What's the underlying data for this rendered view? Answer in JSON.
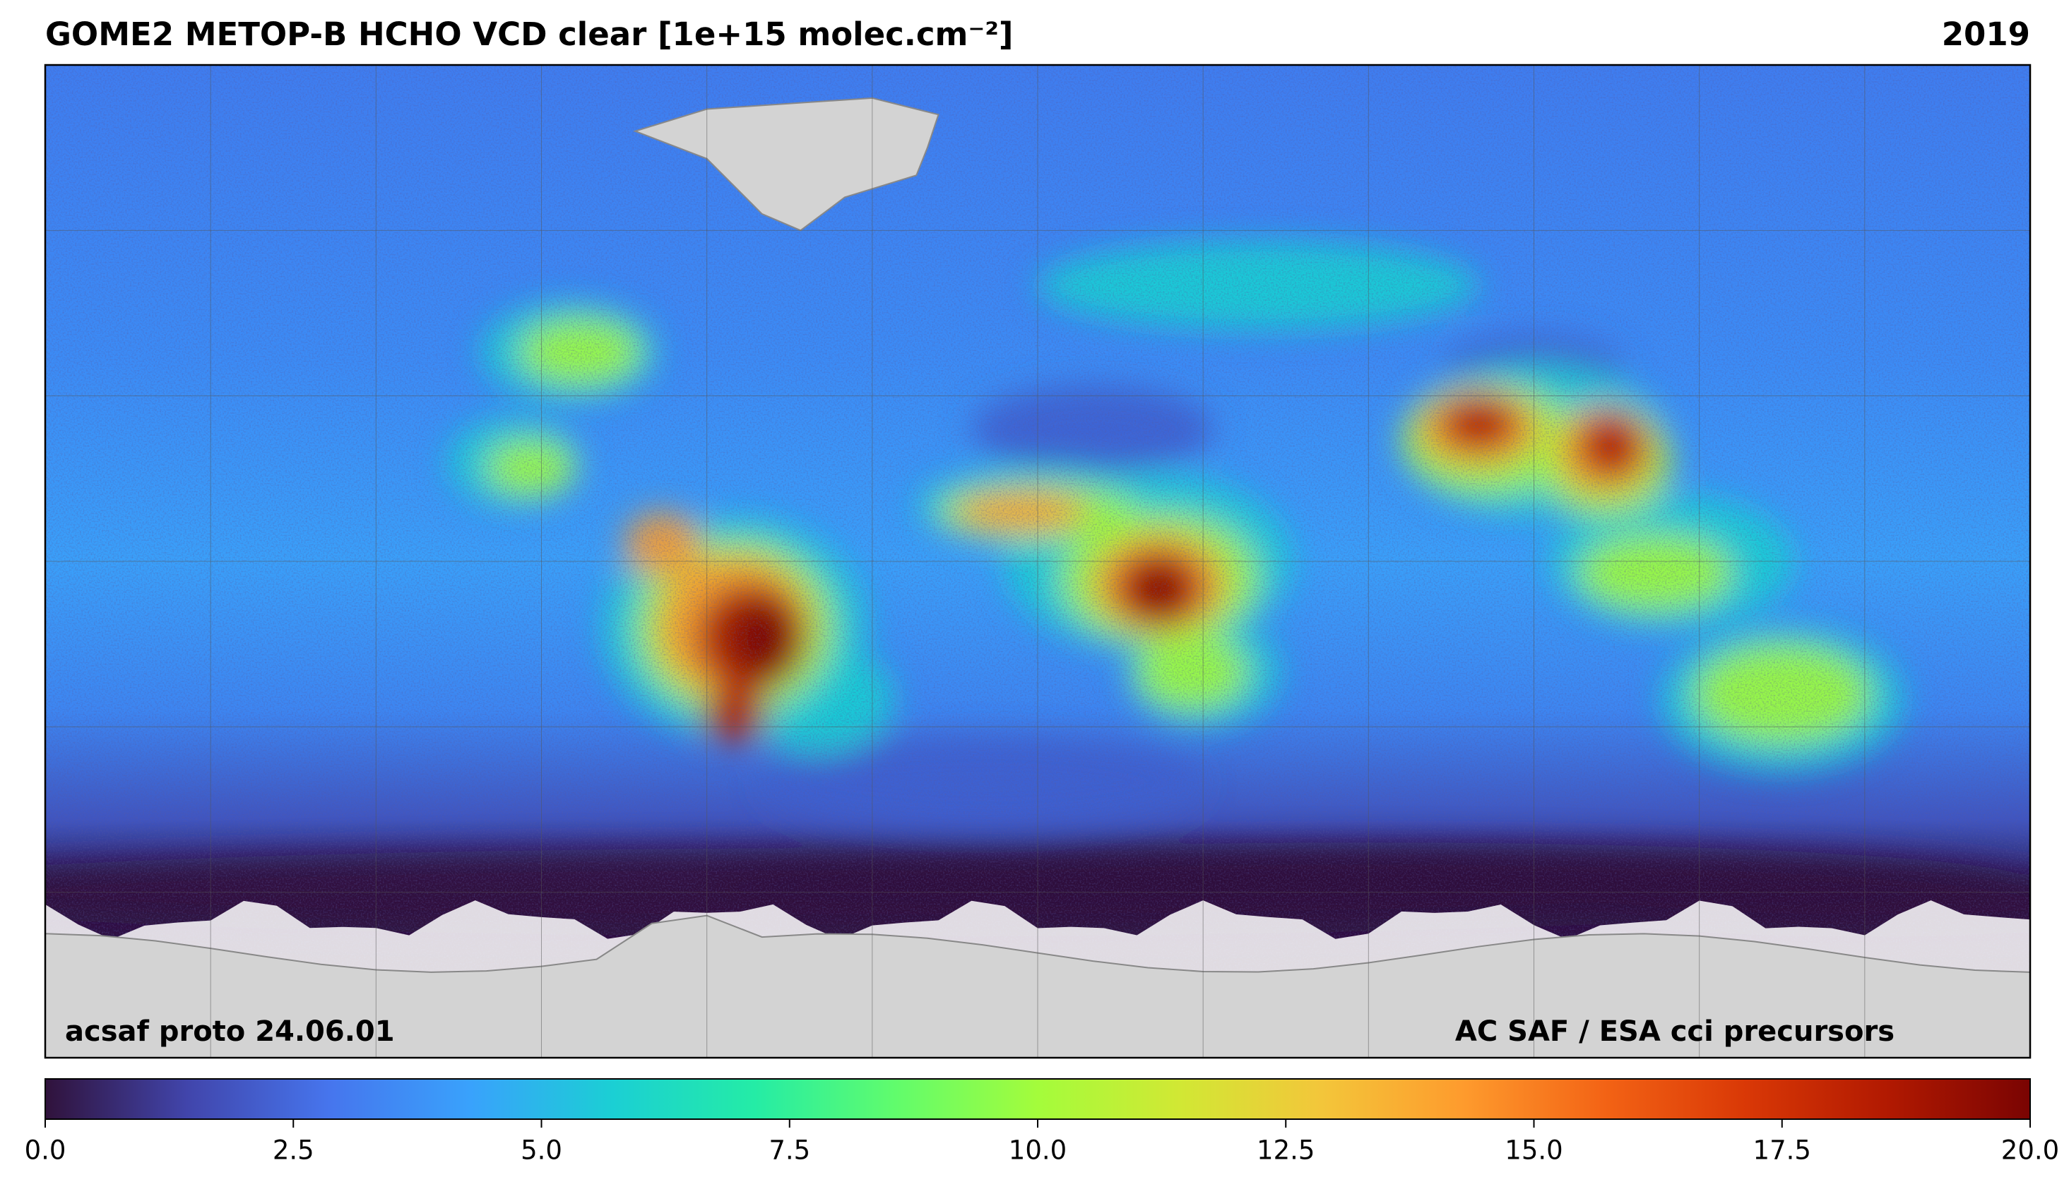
{
  "title": "GOME2 METOP-B HCHO VCD clear [1e+15 molec.cm⁻²]",
  "year": "2019",
  "footer_left": "acsaf proto 24.06.01",
  "footer_right": "AC SAF / ESA cci precursors",
  "colorbar": {
    "clim": [
      0,
      20
    ],
    "ticks": [
      {
        "value": 0,
        "label": "0.0"
      },
      2.5,
      {
        "value": 5,
        "label": "5.0"
      },
      7.5,
      {
        "value": 10,
        "label": "10.0"
      },
      12.5,
      {
        "value": 15,
        "label": "15.0"
      },
      17.5,
      {
        "value": 20,
        "label": "20.0"
      }
    ],
    "colormap": [
      "#30123b",
      "#4145ab",
      "#4675ed",
      "#39a2fc",
      "#1bcfd4",
      "#24eca6",
      "#61fc6c",
      "#a4fc3b",
      "#d1e834",
      "#f3c63a",
      "#fe9b2d",
      "#f36315",
      "#d93806",
      "#b11901",
      "#7a0402"
    ]
  }
}
